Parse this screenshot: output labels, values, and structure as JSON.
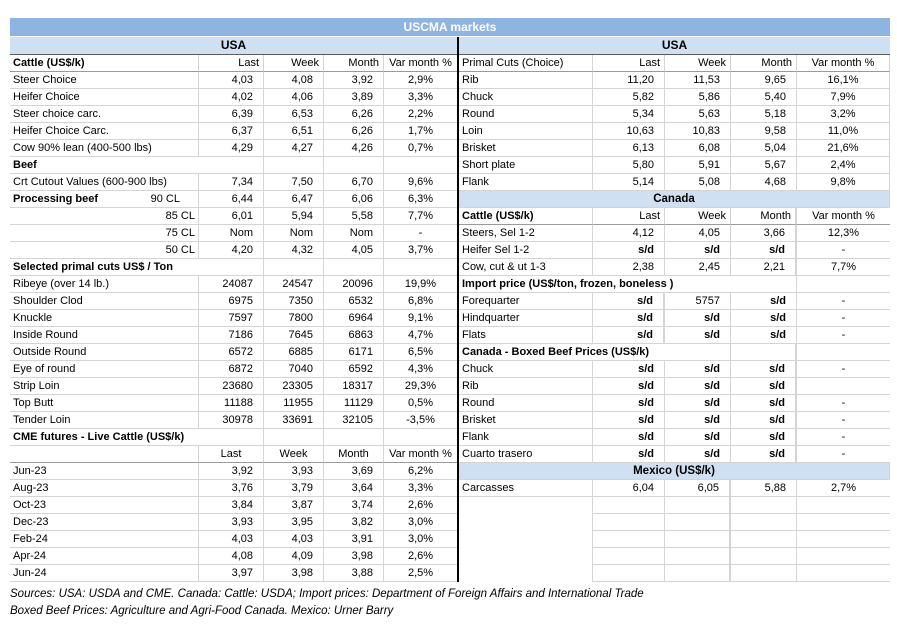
{
  "title": "USCMA markets",
  "colors": {
    "band_dark": "#8EB4E2",
    "band_light": "#CFE0F3",
    "gridline": "#D4D4D4",
    "divider": "#000000"
  },
  "footer": {
    "line1": "Sources: USA: USDA and CME. Canada: Cattle: USDA; Import prices: Department of Foreign Affairs and International Trade",
    "line2": "Boxed Beef Prices: Agriculture and Agri-Food Canada. Mexico: Urner Barry"
  },
  "left_table": {
    "band": "USA",
    "rows": [
      {
        "t": "head",
        "l": "Cattle (US$/k)",
        "lb": true,
        "v": [
          "Last",
          "Week",
          "Month",
          "Var month %"
        ]
      },
      {
        "t": "d",
        "l": "Steer Choice",
        "v": [
          "4,03",
          "4,08",
          "3,92",
          "2,9%"
        ]
      },
      {
        "t": "d",
        "l": "Heifer Choice",
        "v": [
          "4,02",
          "4,06",
          "3,89",
          "3,3%"
        ]
      },
      {
        "t": "d",
        "l": "Steer choice carc.",
        "v": [
          "6,39",
          "6,53",
          "6,26",
          "2,2%"
        ]
      },
      {
        "t": "d",
        "l": "Heifer Choice Carc.",
        "v": [
          "6,37",
          "6,51",
          "6,26",
          "1,7%"
        ]
      },
      {
        "t": "d",
        "l": "Cow 90% lean (400-500 lbs)",
        "v": [
          "4,29",
          "4,27",
          "4,26",
          "0,7%"
        ]
      },
      {
        "t": "sec",
        "l": "Beef",
        "span": 2
      },
      {
        "t": "d",
        "l": "Crt Cutout Values (600-900 lbs)",
        "v": [
          "7,34",
          "7,50",
          "6,70",
          "9,6%"
        ]
      },
      {
        "t": "d",
        "l": "Processing beef",
        "lb": true,
        "sub": "90 CL",
        "v": [
          "6,44",
          "6,47",
          "6,06",
          "6,3%"
        ]
      },
      {
        "t": "d",
        "l": "85 CL",
        "lr": true,
        "v": [
          "6,01",
          "5,94",
          "5,58",
          "7,7%"
        ]
      },
      {
        "t": "d",
        "l": "75 CL",
        "lr": true,
        "v": [
          "Nom",
          "Nom",
          "Nom",
          "-"
        ]
      },
      {
        "t": "d",
        "l": "50 CL",
        "lr": true,
        "v": [
          "4,20",
          "4,32",
          "4,05",
          "3,7%"
        ]
      },
      {
        "t": "sec",
        "l": "Selected primal cuts US$ / Ton",
        "span": 2
      },
      {
        "t": "d",
        "l": "Ribeye (over 14 lb.)",
        "v": [
          "24087",
          "24547",
          "20096",
          "19,9%"
        ]
      },
      {
        "t": "d",
        "l": "Shoulder Clod",
        "v": [
          "6975",
          "7350",
          "6532",
          "6,8%"
        ]
      },
      {
        "t": "d",
        "l": "Knuckle",
        "v": [
          "7597",
          "7800",
          "6964",
          "9,1%"
        ]
      },
      {
        "t": "d",
        "l": "Inside Round",
        "v": [
          "7186",
          "7645",
          "6863",
          "4,7%"
        ]
      },
      {
        "t": "d",
        "l": "Outside Round",
        "v": [
          "6572",
          "6885",
          "6171",
          "6,5%"
        ]
      },
      {
        "t": "d",
        "l": "Eye of round",
        "v": [
          "6872",
          "7040",
          "6592",
          "4,3%"
        ]
      },
      {
        "t": "d",
        "l": "Strip Loin",
        "v": [
          "23680",
          "23305",
          "18317",
          "29,3%"
        ]
      },
      {
        "t": "d",
        "l": "Top Butt",
        "v": [
          "11188",
          "11955",
          "11129",
          "0,5%"
        ]
      },
      {
        "t": "d",
        "l": "Tender Loin",
        "v": [
          "30978",
          "33691",
          "32105",
          "-3,5%"
        ]
      },
      {
        "t": "sec",
        "l": "CME futures - Live Cattle (US$/k)",
        "span": 2
      },
      {
        "t": "head2",
        "l": "",
        "v": [
          "Last",
          "Week",
          "Month",
          "Var month %"
        ]
      },
      {
        "t": "d",
        "l": "Jun-23",
        "v": [
          "3,92",
          "3,93",
          "3,69",
          "6,2%"
        ]
      },
      {
        "t": "d",
        "l": "Aug-23",
        "v": [
          "3,76",
          "3,79",
          "3,64",
          "3,3%"
        ]
      },
      {
        "t": "d",
        "l": "Oct-23",
        "v": [
          "3,84",
          "3,87",
          "3,74",
          "2,6%"
        ]
      },
      {
        "t": "d",
        "l": "Dec-23",
        "v": [
          "3,93",
          "3,95",
          "3,82",
          "3,0%"
        ]
      },
      {
        "t": "d",
        "l": "Feb-24",
        "v": [
          "4,03",
          "4,03",
          "3,91",
          "3,0%"
        ]
      },
      {
        "t": "d",
        "l": "Apr-24",
        "v": [
          "4,08",
          "4,09",
          "3,98",
          "2,6%"
        ]
      },
      {
        "t": "d",
        "l": "Jun-24",
        "v": [
          "3,97",
          "3,98",
          "3,88",
          "2,5%"
        ]
      }
    ]
  },
  "right_table": {
    "band": "USA",
    "rows": [
      {
        "t": "head",
        "l": "Primal Cuts (Choice)",
        "v": [
          "Last",
          "Week",
          "Month",
          "Var month %"
        ]
      },
      {
        "t": "d",
        "l": "Rib",
        "v": [
          "11,20",
          "11,53",
          "9,65",
          "16,1%"
        ]
      },
      {
        "t": "d",
        "l": "Chuck",
        "v": [
          "5,82",
          "5,86",
          "5,40",
          "7,9%"
        ]
      },
      {
        "t": "d",
        "l": "Round",
        "v": [
          "5,34",
          "5,63",
          "5,18",
          "3,2%"
        ]
      },
      {
        "t": "d",
        "l": "Loin",
        "v": [
          "10,63",
          "10,83",
          "9,58",
          "11,0%"
        ]
      },
      {
        "t": "d",
        "l": "Brisket",
        "v": [
          "6,13",
          "6,08",
          "5,04",
          "21,6%"
        ]
      },
      {
        "t": "d",
        "l": "Short plate",
        "v": [
          "5,80",
          "5,91",
          "5,67",
          "2,4%"
        ]
      },
      {
        "t": "d",
        "l": "Flank",
        "v": [
          "5,14",
          "5,08",
          "4,68",
          "9,8%"
        ]
      },
      {
        "t": "band",
        "l": "Canada"
      },
      {
        "t": "head",
        "l": "Cattle (US$/k)",
        "lb": true,
        "v": [
          "Last",
          "Week",
          "Month",
          "Var month %"
        ]
      },
      {
        "t": "d",
        "l": "Steers, Sel 1-2",
        "v": [
          "4,12",
          "4,05",
          "3,66",
          "12,3%"
        ]
      },
      {
        "t": "d",
        "l": "Heifer Sel 1-2",
        "v": [
          "s/d",
          "s/d",
          "s/d",
          "-"
        ]
      },
      {
        "t": "d",
        "l": "Cow, cut & ut 1-3",
        "v": [
          "2,38",
          "2,45",
          "2,21",
          "7,7%"
        ]
      },
      {
        "t": "sec",
        "l": "Import price (US$/ton, frozen, boneless )",
        "span": 4
      },
      {
        "t": "d",
        "l": "Forequarter",
        "v": [
          "s/d",
          "5757",
          "s/d",
          "-"
        ]
      },
      {
        "t": "d",
        "l": "Hindquarter",
        "v": [
          "s/d",
          "s/d",
          "s/d",
          "-"
        ]
      },
      {
        "t": "d",
        "l": "Flats",
        "v": [
          "s/d",
          "s/d",
          "s/d",
          "-"
        ]
      },
      {
        "t": "sec",
        "l": "Canada - Boxed Beef Prices (US$/k)",
        "span": 3
      },
      {
        "t": "d",
        "l": "Chuck",
        "v": [
          "s/d",
          "s/d",
          "s/d",
          "-"
        ]
      },
      {
        "t": "d",
        "l": "Rib",
        "v": [
          "s/d",
          "s/d",
          "s/d",
          ""
        ]
      },
      {
        "t": "d",
        "l": "Round",
        "v": [
          "s/d",
          "s/d",
          "s/d",
          "-"
        ]
      },
      {
        "t": "d",
        "l": "Brisket",
        "v": [
          "s/d",
          "s/d",
          "s/d",
          "-"
        ]
      },
      {
        "t": "d",
        "l": "Flank",
        "v": [
          "s/d",
          "s/d",
          "s/d",
          "-"
        ]
      },
      {
        "t": "d",
        "l": "Cuarto trasero",
        "v": [
          "s/d",
          "s/d",
          "s/d",
          "-"
        ]
      },
      {
        "t": "band",
        "l": "Mexico (US$/k)"
      },
      {
        "t": "d",
        "l": "Carcasses",
        "v": [
          "6,04",
          "6,05",
          "5,88",
          "2,7%"
        ]
      },
      {
        "t": "empty"
      },
      {
        "t": "empty"
      },
      {
        "t": "empty"
      },
      {
        "t": "empty"
      },
      {
        "t": "empty"
      }
    ]
  }
}
